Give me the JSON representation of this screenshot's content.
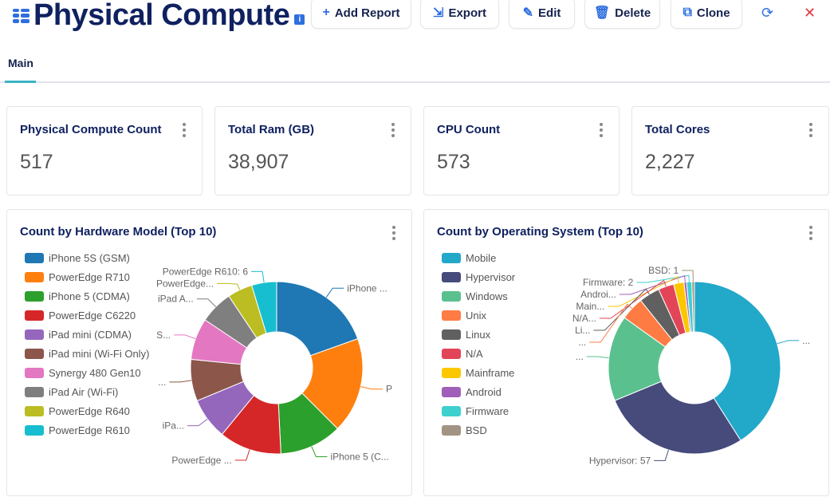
{
  "header": {
    "title": "Physical Compute",
    "info_icon": "i",
    "buttons": [
      {
        "label": "Add Report",
        "icon": "plus-icon"
      },
      {
        "label": "Export",
        "icon": "export-icon"
      },
      {
        "label": "Edit",
        "icon": "edit-icon"
      },
      {
        "label": "Delete",
        "icon": "trash-icon"
      },
      {
        "label": "Clone",
        "icon": "clone-icon"
      }
    ],
    "refresh_icon": "refresh-icon",
    "close_icon": "close-icon"
  },
  "tabs": [
    {
      "label": "Main",
      "active": true
    }
  ],
  "kpis": [
    {
      "title": "Physical Compute Count",
      "value": "517"
    },
    {
      "title": "Total Ram (GB)",
      "value": "38,907"
    },
    {
      "title": "CPU Count",
      "value": "573"
    },
    {
      "title": "Total Cores",
      "value": "2,227"
    }
  ],
  "chart_data": [
    {
      "type": "pie",
      "donut": true,
      "title": "Count by Hardware Model (Top 10)",
      "legend": "left",
      "categories": [
        "iPhone 5S (GSM)",
        "PowerEdge R710",
        "iPhone 5 (CDMA)",
        "PowerEdge C6220",
        "iPad mini (CDMA)",
        "iPad mini (Wi-Fi Only)",
        "Synergy 480 Gen10",
        "iPad Air (Wi-Fi)",
        "PowerEdge R640",
        "PowerEdge R610"
      ],
      "values": [
        25,
        23,
        15,
        15,
        10,
        10,
        10,
        8,
        6,
        6
      ],
      "slice_labels": [
        "iPhone ...",
        "P",
        "iPhone 5 (C...",
        "PowerEdge ...",
        "iPa...",
        "...",
        "S...",
        "iPad A...",
        "PowerEdge...",
        "PowerEdge R610: 6"
      ],
      "colors": [
        "#1f77b4",
        "#ff7f0e",
        "#2ca02c",
        "#d62728",
        "#9467bd",
        "#8c564b",
        "#e377c2",
        "#7f7f7f",
        "#bcbd22",
        "#17becf"
      ]
    },
    {
      "type": "pie",
      "donut": true,
      "title": "Count by Operating System (Top 10)",
      "legend": "left",
      "categories": [
        "Mobile",
        "Hypervisor",
        "Windows",
        "Unix",
        "Linux",
        "N/A",
        "Mainframe",
        "Android",
        "Firmware",
        "BSD"
      ],
      "values": [
        84,
        57,
        33,
        9,
        8,
        6,
        4,
        1,
        2,
        1
      ],
      "slice_labels": [
        "...",
        "Hypervisor: 57",
        "...",
        "...",
        "Li...",
        "N/A...",
        "Main...",
        "Androi...",
        "Firmware: 2",
        "BSD: 1"
      ],
      "colors": [
        "#22a8c9",
        "#464b7c",
        "#5ac18e",
        "#fe7c43",
        "#606060",
        "#e34558",
        "#fdc700",
        "#a05fb9",
        "#3ecfcf",
        "#a39382"
      ]
    }
  ]
}
